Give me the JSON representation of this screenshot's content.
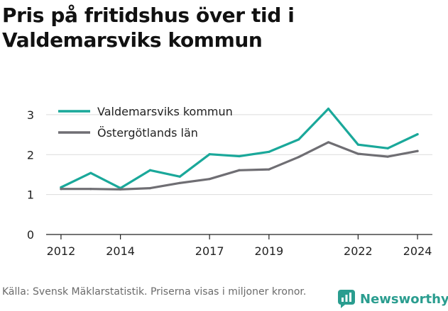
{
  "title_lines": [
    "Pris på fritidshus över tid i",
    "Valdemarsviks kommun"
  ],
  "source": "Källa: Svensk Mäklarstatistik. Priserna visas i miljoner kronor.",
  "brand": {
    "name": "Newsworthy",
    "icon": "newsworthy-logo-icon",
    "color": "#2a9d8f"
  },
  "chart_data": {
    "type": "line",
    "title": "Pris på fritidshus över tid i Valdemarsviks kommun",
    "x": [
      2012,
      2013,
      2014,
      2015,
      2016,
      2017,
      2018,
      2019,
      2020,
      2021,
      2022,
      2023,
      2024
    ],
    "x_tick_labels": [
      "2012",
      "2014",
      "2017",
      "2019",
      "2022",
      "2024"
    ],
    "y_ticks": [
      0,
      1,
      2,
      3
    ],
    "ylim": [
      0,
      3.3
    ],
    "xlabel": "",
    "ylabel": "",
    "grid": true,
    "legend_position": "top-left",
    "series": [
      {
        "name": "Valdemarsviks kommun",
        "color": "#1aa89a",
        "values": [
          1.18,
          1.54,
          1.16,
          1.61,
          1.45,
          2.01,
          1.96,
          2.07,
          2.38,
          3.15,
          2.25,
          2.16,
          2.51
        ]
      },
      {
        "name": "Östergötlands län",
        "color": "#6f6e73",
        "values": [
          1.14,
          1.14,
          1.13,
          1.16,
          1.29,
          1.39,
          1.61,
          1.63,
          1.94,
          2.31,
          2.02,
          1.95,
          2.09
        ]
      }
    ]
  }
}
